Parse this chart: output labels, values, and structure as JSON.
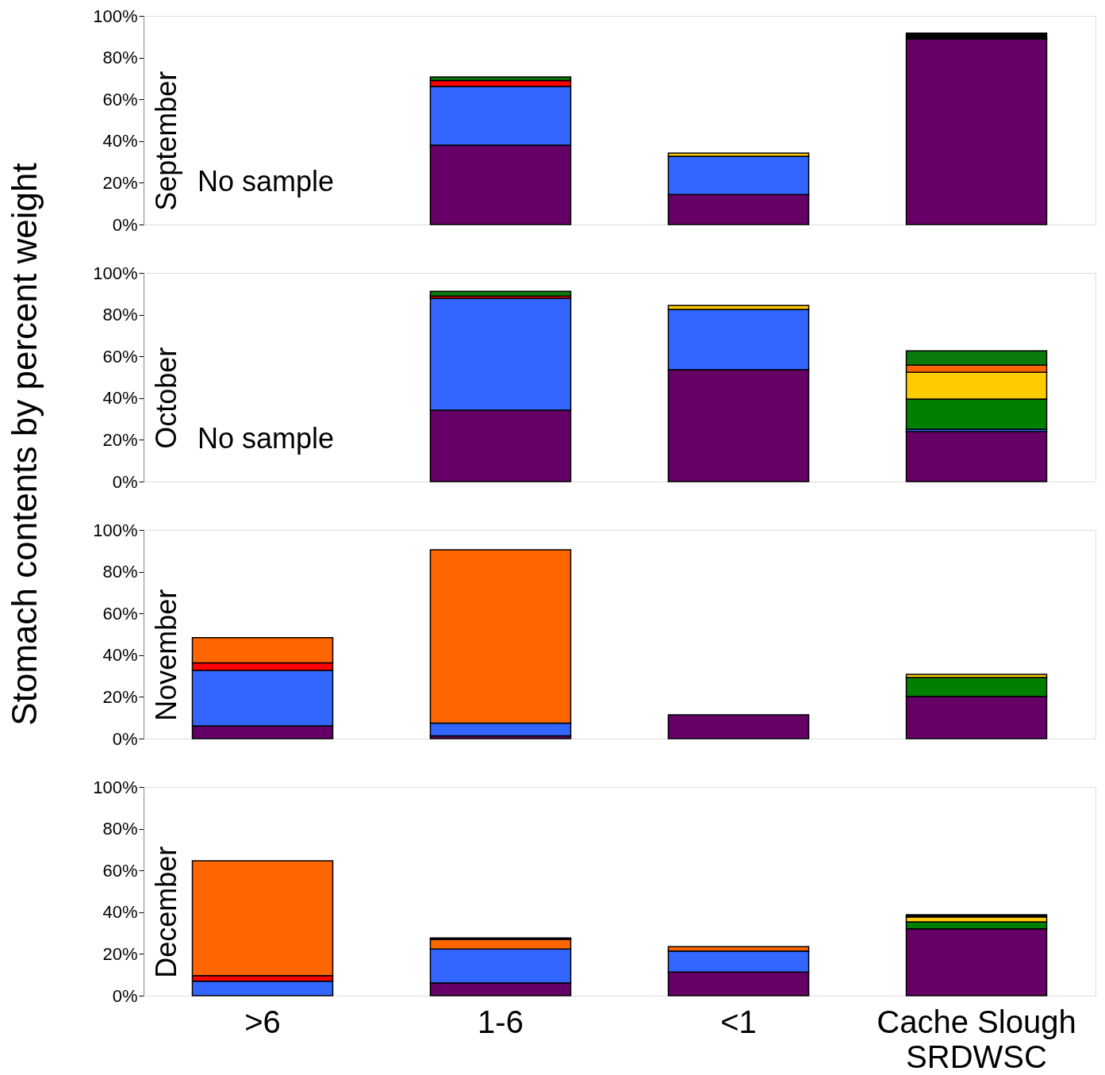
{
  "chart_data": [
    {
      "type": "bar",
      "stacked": true,
      "title": "September",
      "ylabel": "Stomach contents by percent weight",
      "annotations": [
        "No sample"
      ],
      "categories": [
        null,
        null,
        null,
        null
      ],
      "ylim": [
        0,
        100
      ],
      "yticks": [
        {
          "value": 0,
          "label": "0%"
        },
        {
          "value": 20,
          "label": "20%"
        },
        {
          "value": 40,
          "label": "40%"
        },
        {
          "value": 60,
          "label": "60%"
        },
        {
          "value": 80,
          "label": "80%"
        },
        {
          "value": 100,
          "label": "100%"
        }
      ],
      "grid": false,
      "legend": false,
      "tick_labels": "y",
      "series": [
        {
          "color": "#660066",
          "values": [
            null,
            38,
            14.4,
            89
          ]
        },
        {
          "color": "#3366ff",
          "values": [
            null,
            28.2,
            18.3,
            null
          ]
        },
        {
          "color": "#008000",
          "values": [
            null,
            null,
            null,
            null
          ]
        },
        {
          "color": "#ffcc00",
          "values": [
            null,
            null,
            1.5,
            null
          ]
        },
        {
          "color": "#ff0000",
          "values": [
            null,
            2.8,
            null,
            null
          ]
        },
        {
          "color": "#ff6600",
          "values": [
            null,
            null,
            null,
            null
          ]
        },
        {
          "color": "#0a7a0a",
          "values": [
            null,
            1.7,
            null,
            null
          ]
        },
        {
          "color": "#000000",
          "values": [
            null,
            null,
            null,
            2.7
          ]
        }
      ]
    },
    {
      "type": "bar",
      "stacked": true,
      "title": "October",
      "annotations": [
        "No sample"
      ],
      "categories": [
        null,
        null,
        null,
        null
      ],
      "ylim": [
        0,
        100
      ],
      "yticks": [
        {
          "value": 0,
          "label": "0%"
        },
        {
          "value": 20,
          "label": "20%"
        },
        {
          "value": 40,
          "label": "40%"
        },
        {
          "value": 60,
          "label": "60%"
        },
        {
          "value": 80,
          "label": "80%"
        },
        {
          "value": 100,
          "label": "100%"
        }
      ],
      "grid": false,
      "legend": false,
      "tick_labels": "y",
      "series": [
        {
          "color": "#660066",
          "values": [
            null,
            34.2,
            53.6,
            24
          ]
        },
        {
          "color": "#3366ff",
          "values": [
            null,
            53.6,
            28.9,
            1.1
          ]
        },
        {
          "color": "#008000",
          "values": [
            null,
            null,
            null,
            14.4
          ]
        },
        {
          "color": "#ffcc00",
          "values": [
            null,
            null,
            1.9,
            12.9
          ]
        },
        {
          "color": "#ff0000",
          "values": [
            null,
            1.1,
            null,
            null
          ]
        },
        {
          "color": "#ff6600",
          "values": [
            null,
            null,
            null,
            3.4
          ]
        },
        {
          "color": "#0a7a0a",
          "values": [
            null,
            2.3,
            null,
            6.8
          ]
        },
        {
          "color": "#000000",
          "values": [
            null,
            null,
            null,
            null
          ]
        }
      ]
    },
    {
      "type": "bar",
      "stacked": true,
      "title": "November",
      "categories": [
        null,
        null,
        null,
        null
      ],
      "ylim": [
        0,
        100
      ],
      "yticks": [
        {
          "value": 0,
          "label": "0%"
        },
        {
          "value": 20,
          "label": "20%"
        },
        {
          "value": 40,
          "label": "40%"
        },
        {
          "value": 60,
          "label": "60%"
        },
        {
          "value": 80,
          "label": "80%"
        },
        {
          "value": 100,
          "label": "100%"
        }
      ],
      "grid": false,
      "legend": false,
      "tick_labels": "y",
      "series": [
        {
          "color": "#660066",
          "values": [
            6.1,
            1.3,
            11.4,
            20.2
          ]
        },
        {
          "color": "#3366ff",
          "values": [
            26.6,
            6.1,
            null,
            null
          ]
        },
        {
          "color": "#008000",
          "values": [
            null,
            null,
            null,
            9.1
          ]
        },
        {
          "color": "#ffcc00",
          "values": [
            null,
            null,
            null,
            1.5
          ]
        },
        {
          "color": "#ff0000",
          "values": [
            3.6,
            null,
            null,
            null
          ]
        },
        {
          "color": "#ff6600",
          "values": [
            12.1,
            83.1,
            null,
            null
          ]
        },
        {
          "color": "#0a7a0a",
          "values": [
            null,
            null,
            null,
            null
          ]
        },
        {
          "color": "#000000",
          "values": [
            null,
            null,
            null,
            null
          ]
        }
      ]
    },
    {
      "type": "bar",
      "stacked": true,
      "title": "December",
      "categories": [
        ">6",
        "1-6",
        "<1",
        "Cache Slough\nSRDWSC"
      ],
      "ylim": [
        0,
        100
      ],
      "yticks": [
        {
          "value": 0,
          "label": "0%"
        },
        {
          "value": 20,
          "label": "20%"
        },
        {
          "value": 40,
          "label": "40%"
        },
        {
          "value": 60,
          "label": "60%"
        },
        {
          "value": 80,
          "label": "80%"
        },
        {
          "value": 100,
          "label": "100%"
        }
      ],
      "grid": false,
      "legend": false,
      "series": [
        {
          "color": "#660066",
          "values": [
            null,
            6.1,
            11.3,
            32
          ]
        },
        {
          "color": "#3366ff",
          "values": [
            6.9,
            16.2,
            10.1,
            null
          ]
        },
        {
          "color": "#008000",
          "values": [
            null,
            null,
            null,
            3.4
          ]
        },
        {
          "color": "#ffcc00",
          "values": [
            null,
            null,
            null,
            2.3
          ]
        },
        {
          "color": "#ff0000",
          "values": [
            2.7,
            null,
            null,
            null
          ]
        },
        {
          "color": "#ff6600",
          "values": [
            55,
            4.6,
            2.1,
            null
          ]
        },
        {
          "color": "#0a7a0a",
          "values": [
            null,
            null,
            null,
            null
          ]
        },
        {
          "color": "#000000",
          "values": [
            null,
            0.8,
            null,
            1.1
          ]
        }
      ]
    }
  ]
}
